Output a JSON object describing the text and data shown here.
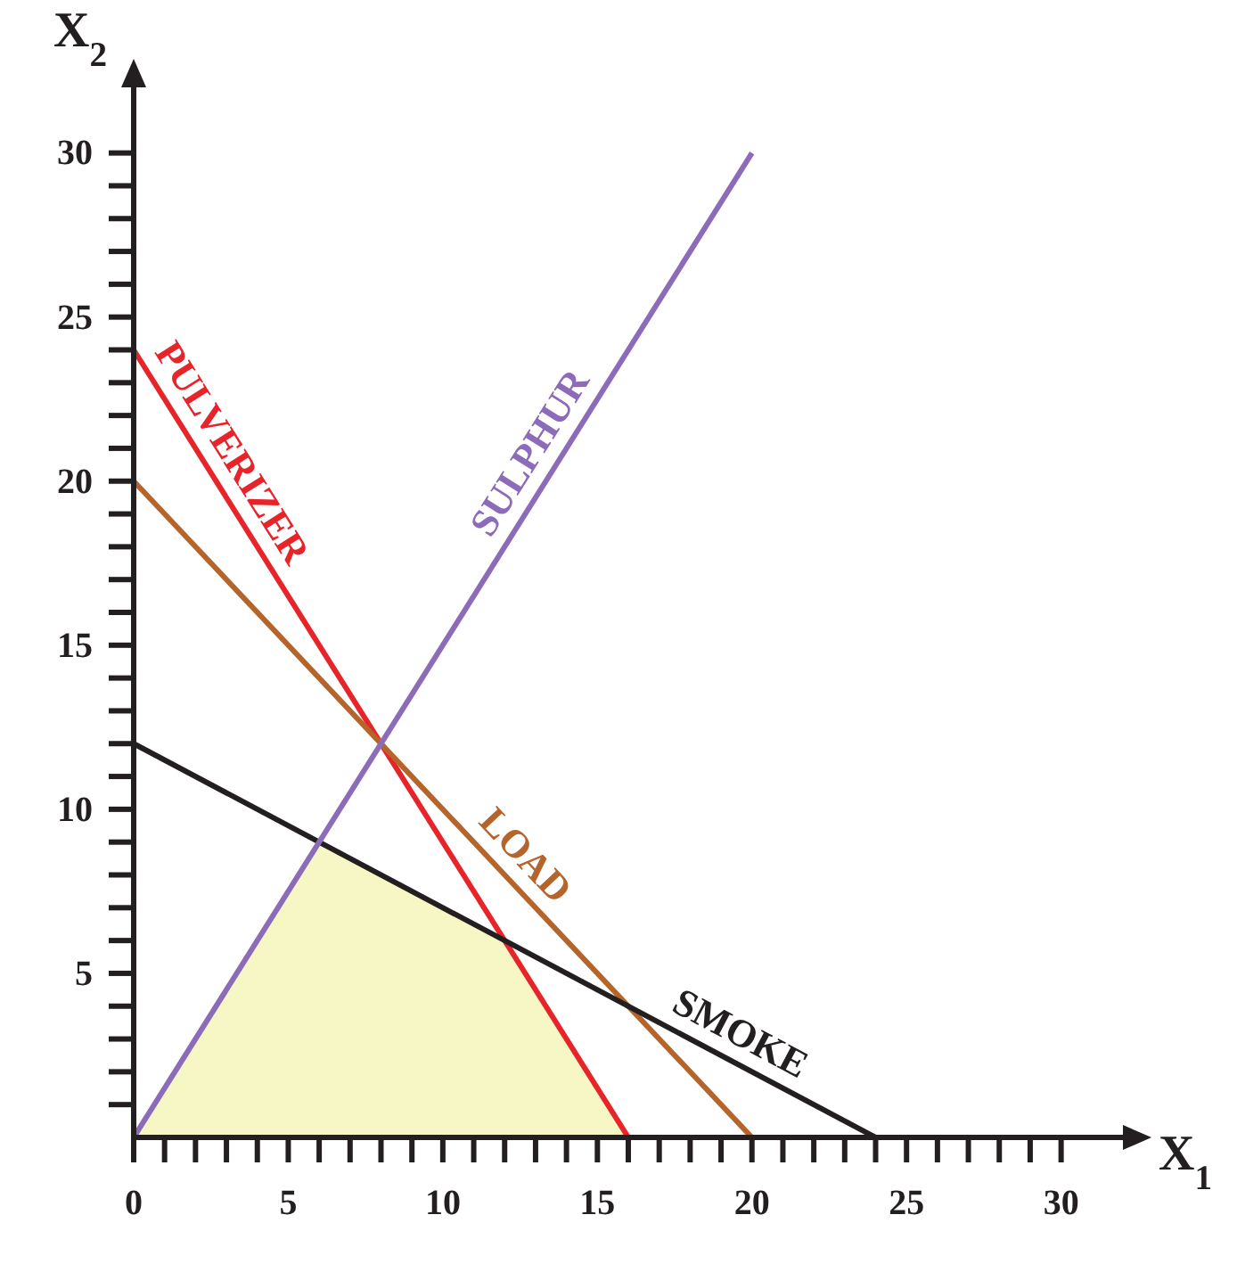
{
  "chart_data": {
    "type": "line",
    "xlabel": "X$_{1}$",
    "ylabel": "X$_{2}$",
    "xlim": [
      0,
      32
    ],
    "ylim": [
      0,
      32
    ],
    "xticks": [
      0,
      {
        "value": 1,
        "label": null
      },
      {
        "value": 2,
        "label": null
      },
      {
        "value": 3,
        "label": null
      },
      {
        "value": 4,
        "label": null
      },
      5,
      {
        "value": 6,
        "label": null
      },
      {
        "value": 7,
        "label": null
      },
      {
        "value": 8,
        "label": null
      },
      {
        "value": 9,
        "label": null
      },
      10,
      {
        "value": 11,
        "label": null
      },
      {
        "value": 12,
        "label": null
      },
      {
        "value": 13,
        "label": null
      },
      {
        "value": 14,
        "label": null
      },
      15,
      {
        "value": 16,
        "label": null
      },
      {
        "value": 17,
        "label": null
      },
      {
        "value": 18,
        "label": null
      },
      {
        "value": 19,
        "label": null
      },
      20,
      {
        "value": 21,
        "label": null
      },
      {
        "value": 22,
        "label": null
      },
      {
        "value": 23,
        "label": null
      },
      {
        "value": 24,
        "label": null
      },
      25,
      {
        "value": 26,
        "label": null
      },
      {
        "value": 27,
        "label": null
      },
      {
        "value": 28,
        "label": null
      },
      {
        "value": 29,
        "label": null
      },
      30
    ],
    "yticks": [
      {
        "value": 1,
        "label": null
      },
      {
        "value": 2,
        "label": null
      },
      {
        "value": 3,
        "label": null
      },
      {
        "value": 4,
        "label": null
      },
      5,
      {
        "value": 6,
        "label": null
      },
      {
        "value": 7,
        "label": null
      },
      {
        "value": 8,
        "label": null
      },
      {
        "value": 9,
        "label": null
      },
      10,
      {
        "value": 11,
        "label": null
      },
      {
        "value": 12,
        "label": null
      },
      {
        "value": 13,
        "label": null
      },
      {
        "value": 14,
        "label": null
      },
      15,
      {
        "value": 16,
        "label": null
      },
      {
        "value": 17,
        "label": null
      },
      {
        "value": 18,
        "label": null
      },
      {
        "value": 19,
        "label": null
      },
      20,
      {
        "value": 21,
        "label": null
      },
      {
        "value": 22,
        "label": null
      },
      {
        "value": 23,
        "label": null
      },
      {
        "value": 24,
        "label": null
      },
      25,
      {
        "value": 26,
        "label": null
      },
      {
        "value": 27,
        "label": null
      },
      {
        "value": 28,
        "label": null
      },
      {
        "value": 29,
        "label": null
      },
      30
    ],
    "grid": false,
    "marker": "none",
    "line_style": "solid",
    "series": [
      {
        "type": "area",
        "color": "#f7f7c6",
        "x": [
          0,
          6,
          12,
          16
        ],
        "values": [
          0,
          9,
          6,
          0
        ]
      },
      {
        "name": "PULVERIZER",
        "color": "#e8242b",
        "x": [
          0,
          16
        ],
        "values": [
          24,
          0
        ]
      },
      {
        "name": "LOAD",
        "color": "#b5652b",
        "x": [
          0,
          20
        ],
        "values": [
          20,
          0
        ]
      },
      {
        "name": "SMOKE",
        "color": "#231f20",
        "x": [
          0,
          24
        ],
        "values": [
          12,
          0
        ]
      },
      {
        "name": "SULPHUR",
        "color": "#8c6bb8",
        "x": [
          0,
          20
        ],
        "values": [
          0,
          30
        ]
      }
    ]
  }
}
